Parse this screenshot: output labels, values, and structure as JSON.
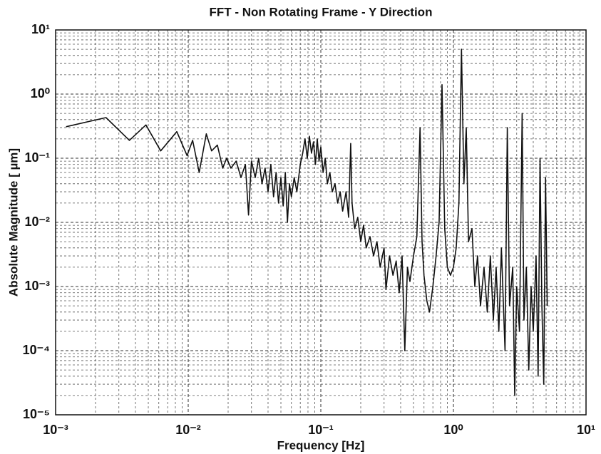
{
  "chart_data": {
    "type": "line",
    "title": "FFT - Non Rotating Frame - Y Direction",
    "xlabel": "Frequency [Hz]",
    "ylabel": "Absolute Magnitude [ µm]",
    "xscale": "log",
    "yscale": "log",
    "grid": true,
    "minor_grid": true,
    "color": "#111111",
    "xlim": [
      0.001,
      10
    ],
    "ylim": [
      1e-05,
      10
    ],
    "xticks": [
      {
        "value": 0.001,
        "label": "10⁻³"
      },
      {
        "value": 0.01,
        "label": "10⁻²"
      },
      {
        "value": 0.1,
        "label": "10⁻¹"
      },
      {
        "value": 1,
        "label": "10⁰"
      },
      {
        "value": 10,
        "label": "10¹"
      }
    ],
    "yticks": [
      {
        "value": 1e-05,
        "label": "10⁻⁵"
      },
      {
        "value": 0.0001,
        "label": "10⁻⁴"
      },
      {
        "value": 0.001,
        "label": "10⁻³"
      },
      {
        "value": 0.01,
        "label": "10⁻²"
      },
      {
        "value": 0.1,
        "label": "10⁻¹"
      },
      {
        "value": 1,
        "label": "10⁰"
      },
      {
        "value": 10,
        "label": "10¹"
      }
    ],
    "x": [
      0.0012,
      0.0024,
      0.0036,
      0.0048,
      0.0062,
      0.0082,
      0.0098,
      0.0108,
      0.0121,
      0.0137,
      0.015,
      0.0166,
      0.0182,
      0.0195,
      0.021,
      0.023,
      0.025,
      0.027,
      0.0285,
      0.03,
      0.032,
      0.034,
      0.036,
      0.038,
      0.04,
      0.042,
      0.044,
      0.046,
      0.048,
      0.05,
      0.052,
      0.054,
      0.056,
      0.058,
      0.06,
      0.063,
      0.066,
      0.07,
      0.073,
      0.076,
      0.079,
      0.082,
      0.085,
      0.088,
      0.091,
      0.094,
      0.097,
      0.1,
      0.104,
      0.108,
      0.112,
      0.117,
      0.122,
      0.128,
      0.134,
      0.14,
      0.146,
      0.155,
      0.162,
      0.168,
      0.172,
      0.18,
      0.19,
      0.2,
      0.21,
      0.22,
      0.235,
      0.25,
      0.265,
      0.28,
      0.3,
      0.31,
      0.33,
      0.35,
      0.37,
      0.39,
      0.41,
      0.43,
      0.45,
      0.47,
      0.5,
      0.53,
      0.56,
      0.58,
      0.6,
      0.63,
      0.66,
      0.7,
      0.74,
      0.78,
      0.82,
      0.86,
      0.9,
      0.95,
      1.0,
      1.05,
      1.1,
      1.15,
      1.2,
      1.25,
      1.3,
      1.38,
      1.45,
      1.52,
      1.6,
      1.7,
      1.8,
      1.9,
      2.0,
      2.1,
      2.2,
      2.3,
      2.45,
      2.55,
      2.65,
      2.8,
      2.9,
      3.0,
      3.15,
      3.3,
      3.4,
      3.55,
      3.7,
      3.85,
      4.0,
      4.2,
      4.35,
      4.5,
      4.65,
      4.8,
      4.95,
      5.1
    ],
    "y": [
      0.31,
      0.43,
      0.19,
      0.33,
      0.13,
      0.26,
      0.11,
      0.19,
      0.06,
      0.24,
      0.13,
      0.16,
      0.07,
      0.1,
      0.07,
      0.09,
      0.05,
      0.08,
      0.013,
      0.09,
      0.05,
      0.1,
      0.04,
      0.07,
      0.03,
      0.08,
      0.025,
      0.06,
      0.02,
      0.05,
      0.018,
      0.06,
      0.01,
      0.04,
      0.025,
      0.05,
      0.03,
      0.08,
      0.12,
      0.2,
      0.1,
      0.22,
      0.12,
      0.18,
      0.08,
      0.2,
      0.09,
      0.15,
      0.06,
      0.1,
      0.04,
      0.06,
      0.03,
      0.04,
      0.02,
      0.03,
      0.015,
      0.03,
      0.012,
      0.17,
      0.02,
      0.008,
      0.012,
      0.005,
      0.009,
      0.004,
      0.006,
      0.003,
      0.005,
      0.002,
      0.004,
      0.0009,
      0.003,
      0.0015,
      0.0025,
      0.0008,
      0.003,
      0.0001,
      0.002,
      0.0012,
      0.003,
      0.006,
      0.3,
      0.005,
      0.0015,
      0.0006,
      0.0004,
      0.001,
      0.003,
      0.01,
      1.4,
      0.008,
      0.002,
      0.0015,
      0.002,
      0.004,
      0.02,
      5,
      0.04,
      0.3,
      0.005,
      0.008,
      0.001,
      0.003,
      0.0005,
      0.002,
      0.0004,
      0.003,
      0.0003,
      0.002,
      0.0002,
      0.004,
      0.0001,
      0.3,
      0.0005,
      0.002,
      2e-05,
      0.001,
      0.0002,
      0.5,
      0.0003,
      0.002,
      5e-05,
      0.001,
      0.0002,
      0.003,
      4e-05,
      0.1,
      0.0005,
      3e-05,
      0.05,
      0.0005
    ]
  }
}
